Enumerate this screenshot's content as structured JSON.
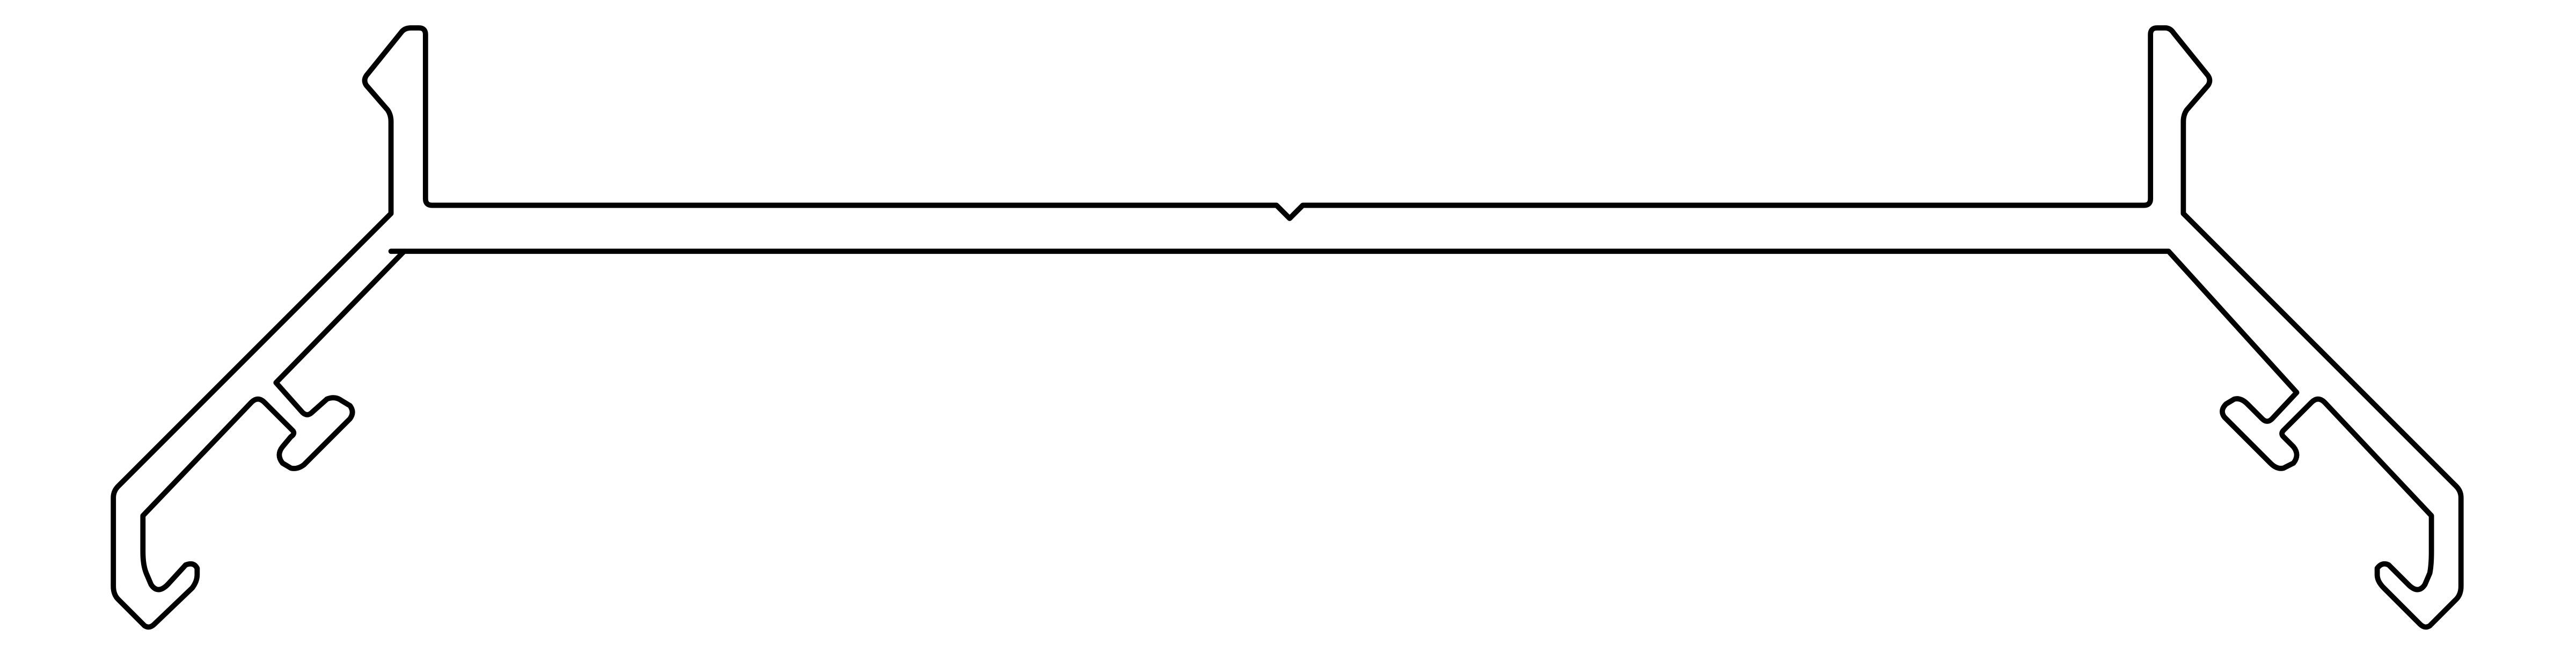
{
  "drawing": {
    "line_color": "#000000",
    "background_color": "#ffffff"
  }
}
